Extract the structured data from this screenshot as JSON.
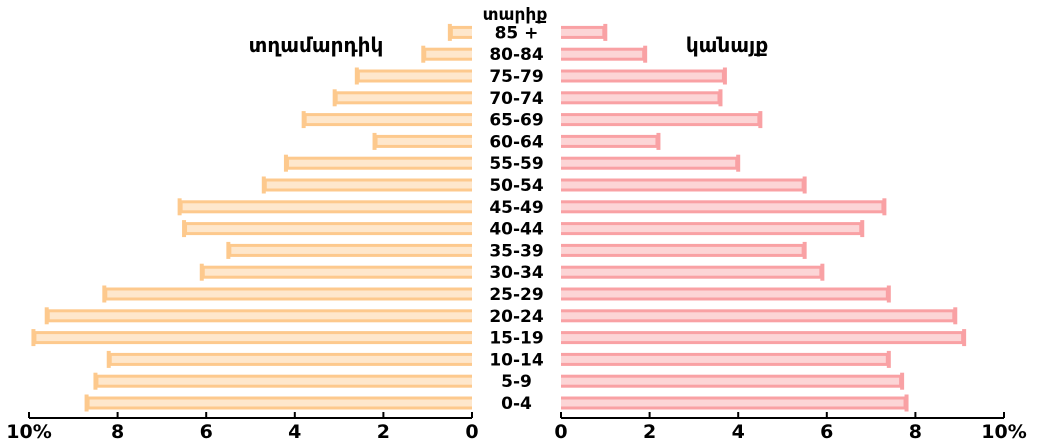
{
  "chart_data": {
    "type": "bar",
    "orientation": "horizontal",
    "layout": "population-pyramid",
    "title": "",
    "age_axis_title": "տարիք",
    "categories": [
      "0-4",
      "5-9",
      "10-14",
      "15-19",
      "20-24",
      "25-29",
      "30-34",
      "35-39",
      "40-44",
      "45-49",
      "50-54",
      "55-59",
      "60-64",
      "65-69",
      "70-74",
      "75-79",
      "80-84",
      "85 +"
    ],
    "series": [
      {
        "name": "տղամարդիկ",
        "side": "left",
        "color": "#FDC98D",
        "values": [
          8.7,
          8.5,
          8.2,
          9.9,
          9.6,
          8.3,
          6.1,
          5.5,
          6.5,
          6.6,
          4.7,
          4.2,
          2.2,
          3.8,
          3.1,
          2.6,
          1.1,
          0.5
        ]
      },
      {
        "name": "կանայք",
        "side": "right",
        "color": "#F9A1A4",
        "values": [
          7.8,
          7.7,
          7.4,
          9.1,
          8.9,
          7.4,
          5.9,
          5.5,
          6.8,
          7.3,
          5.5,
          4.0,
          2.2,
          4.5,
          3.6,
          3.7,
          1.9,
          1.0
        ]
      }
    ],
    "x_ticks_left": [
      "10%",
      "8",
      "6",
      "4",
      "2",
      "0"
    ],
    "x_ticks_right": [
      "0",
      "2",
      "4",
      "6",
      "8",
      "10%"
    ],
    "xlim": [
      0,
      10
    ],
    "grid": false,
    "legend": "series names printed at top of each side"
  }
}
